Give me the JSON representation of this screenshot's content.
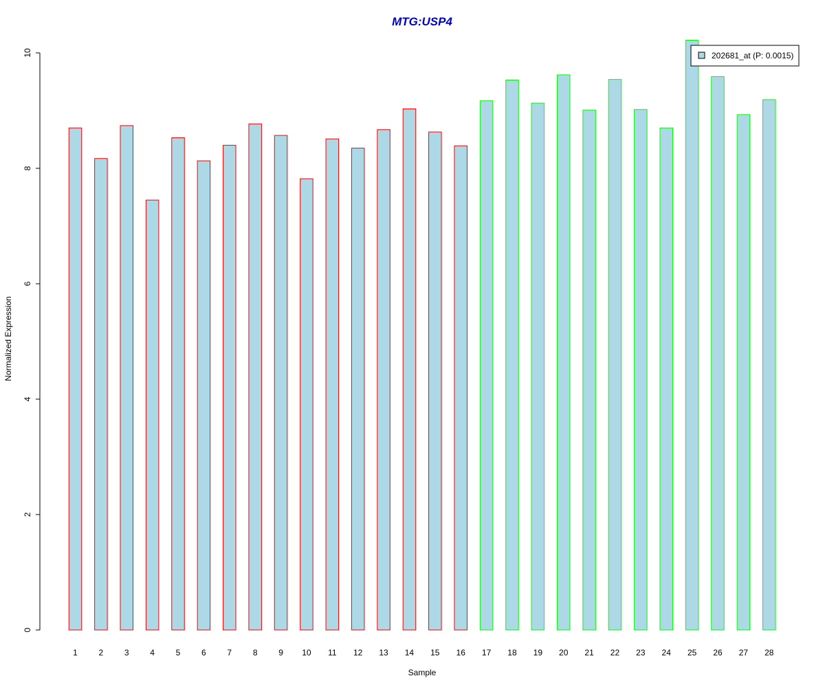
{
  "chart_data": {
    "type": "bar",
    "title": "MTG:USP4",
    "xlabel": "Sample",
    "ylabel": "Normalized Expression",
    "categories": [
      "1",
      "2",
      "3",
      "4",
      "5",
      "6",
      "7",
      "8",
      "9",
      "10",
      "11",
      "12",
      "13",
      "14",
      "15",
      "16",
      "17",
      "18",
      "19",
      "20",
      "21",
      "22",
      "23",
      "24",
      "25",
      "26",
      "27",
      "28"
    ],
    "series": [
      {
        "name": "202681_at (P: 0.0015)",
        "values": [
          8.7,
          8.17,
          8.74,
          7.45,
          8.53,
          8.13,
          8.4,
          8.77,
          8.57,
          7.82,
          8.51,
          8.35,
          8.67,
          9.03,
          8.63,
          8.39,
          9.17,
          9.53,
          9.13,
          9.62,
          9.01,
          9.54,
          9.02,
          8.7,
          10.22,
          9.59,
          8.93,
          9.19
        ]
      }
    ],
    "group_boundary_after": 16,
    "ylim": [
      0,
      10
    ],
    "yticks": [
      0,
      2,
      4,
      6,
      8,
      10
    ],
    "grid": false,
    "legend_position": "top-right",
    "colors": {
      "title": "#0000CC",
      "bar_fill": "#ADD8E6",
      "group1_border": "#FF0000",
      "group2_border": "#00FF00",
      "axis": "#000000"
    }
  }
}
